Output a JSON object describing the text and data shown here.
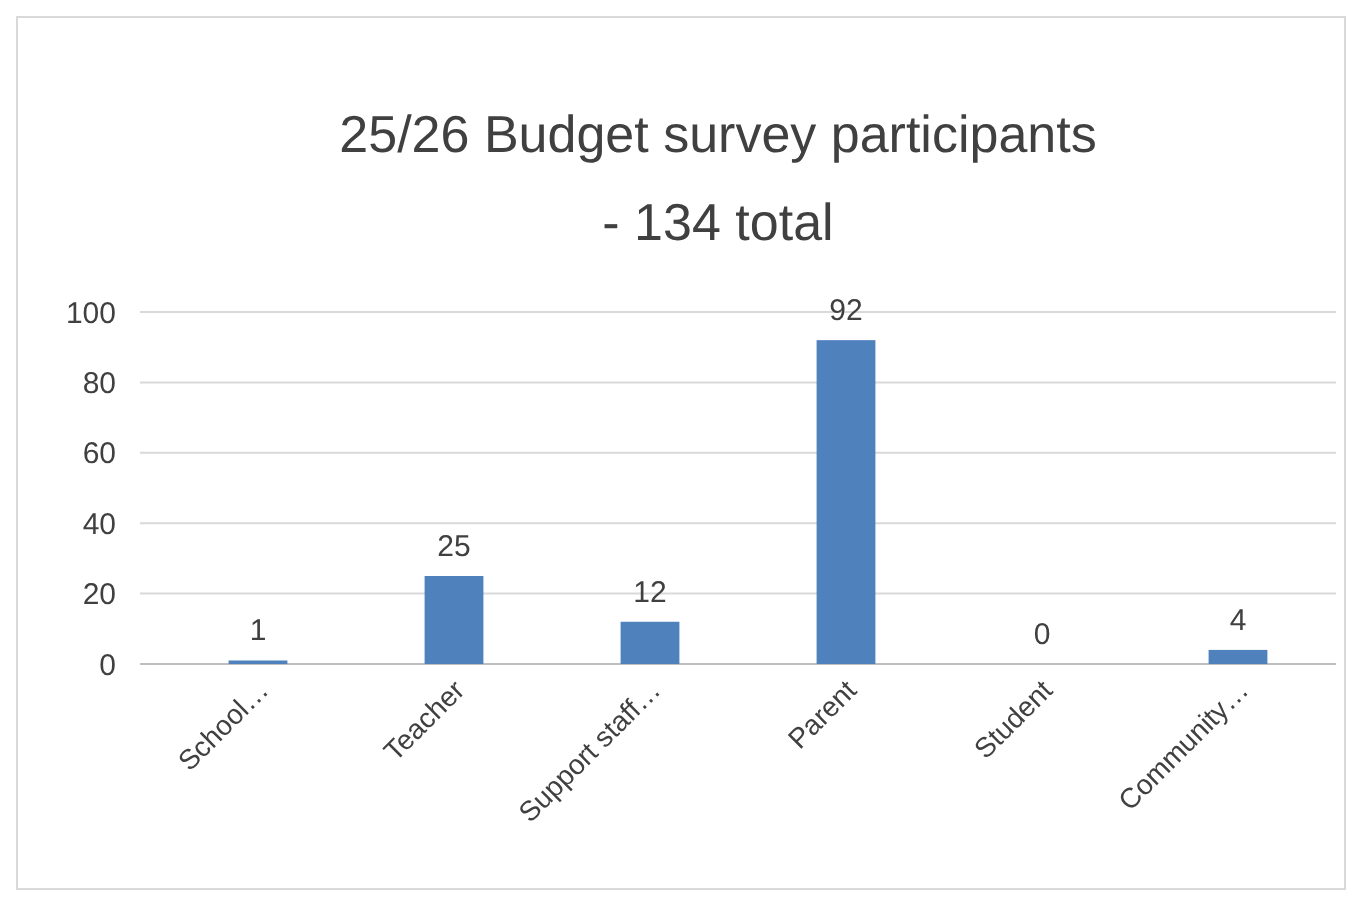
{
  "chart_data": {
    "type": "bar",
    "title": "25/26 Budget survey participants - 134 total",
    "categories": [
      "School…",
      "Teacher",
      "Support staff…",
      "Parent",
      "Student",
      "Community…"
    ],
    "values": [
      1,
      25,
      12,
      92,
      0,
      4
    ],
    "color": "#4f81bd",
    "ylim": [
      0,
      100
    ],
    "yticks": [
      0,
      20,
      40,
      60,
      80,
      100
    ],
    "grid": true,
    "data_labels": true
  }
}
